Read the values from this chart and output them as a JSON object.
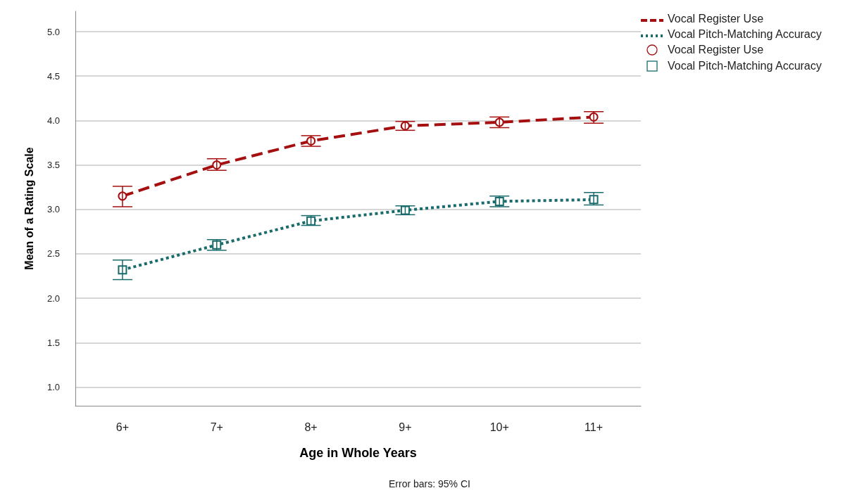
{
  "chart_data": {
    "type": "line",
    "xlabel": "Age in Whole Years",
    "ylabel": "Mean of a Rating Scale",
    "annotations": [
      "Error bars: 95% CI"
    ],
    "categories": [
      "6+",
      "7+",
      "8+",
      "9+",
      "10+",
      "11+"
    ],
    "ylim": [
      0.79,
      5.23
    ],
    "yticks": [
      {
        "value": 1,
        "label": "1.0"
      },
      {
        "value": 1.5,
        "label": "1.5"
      },
      {
        "value": 2,
        "label": "2.0"
      },
      {
        "value": 2.5,
        "label": "2.5"
      },
      {
        "value": 3,
        "label": "3.0"
      },
      {
        "value": 3.5,
        "label": "3.5"
      },
      {
        "value": 4,
        "label": "4.0"
      },
      {
        "value": 4.5,
        "label": "4.5"
      },
      {
        "value": 5,
        "label": "5.0"
      }
    ],
    "grid": "y",
    "legend": "top right",
    "series": [
      {
        "name": "Vocal Register Use",
        "color": "#a50f0f",
        "line_style": "dashed",
        "marker": "circle",
        "values": [
          3.15,
          3.5,
          3.77,
          3.94,
          3.98,
          4.04
        ],
        "errors": [
          [
            3.03,
            3.26
          ],
          [
            3.44,
            3.57
          ],
          [
            3.71,
            3.83
          ],
          [
            3.89,
            3.99
          ],
          [
            3.92,
            4.04
          ],
          [
            3.97,
            4.1
          ]
        ]
      },
      {
        "name": "Vocal Pitch-Matching Accuracy",
        "color": "#1a6b6b",
        "line_style": "dotted",
        "marker": "square",
        "values": [
          2.32,
          2.6,
          2.87,
          2.99,
          3.09,
          3.11
        ],
        "errors": [
          [
            2.21,
            2.43
          ],
          [
            2.54,
            2.66
          ],
          [
            2.82,
            2.93
          ],
          [
            2.94,
            3.04
          ],
          [
            3.03,
            3.15
          ],
          [
            3.05,
            3.19
          ]
        ]
      }
    ]
  }
}
